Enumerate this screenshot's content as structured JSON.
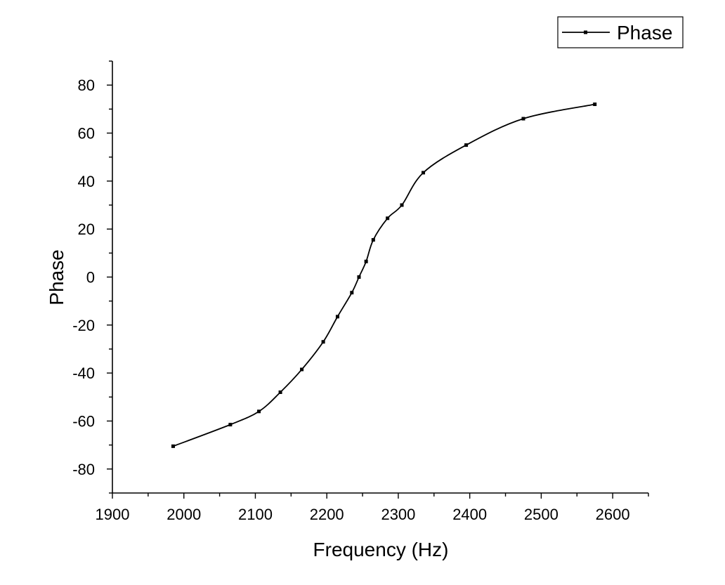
{
  "chart_data": {
    "type": "line",
    "xlabel": "Frequency (Hz)",
    "ylabel": "Phase",
    "xlim": [
      1900,
      2650
    ],
    "ylim": [
      -90,
      90
    ],
    "xticks": [
      1900,
      2000,
      2100,
      2200,
      2300,
      2400,
      2500,
      2600
    ],
    "yticks": [
      -80,
      -60,
      -40,
      -20,
      0,
      20,
      40,
      60,
      80
    ],
    "grid": false,
    "legend_position": "top-right",
    "series": [
      {
        "name": "Phase",
        "color": "#000000",
        "marker": "square",
        "smooth": true,
        "x": [
          1985,
          2065,
          2105,
          2135,
          2165,
          2195,
          2215,
          2235,
          2245,
          2255,
          2265,
          2285,
          2305,
          2335,
          2395,
          2475,
          2575
        ],
        "y": [
          -70.5,
          -61.5,
          -56,
          -48,
          -38.5,
          -27,
          -16.5,
          -6.5,
          0,
          6.5,
          15.5,
          24.5,
          30,
          43.5,
          55,
          66,
          72
        ]
      }
    ]
  }
}
